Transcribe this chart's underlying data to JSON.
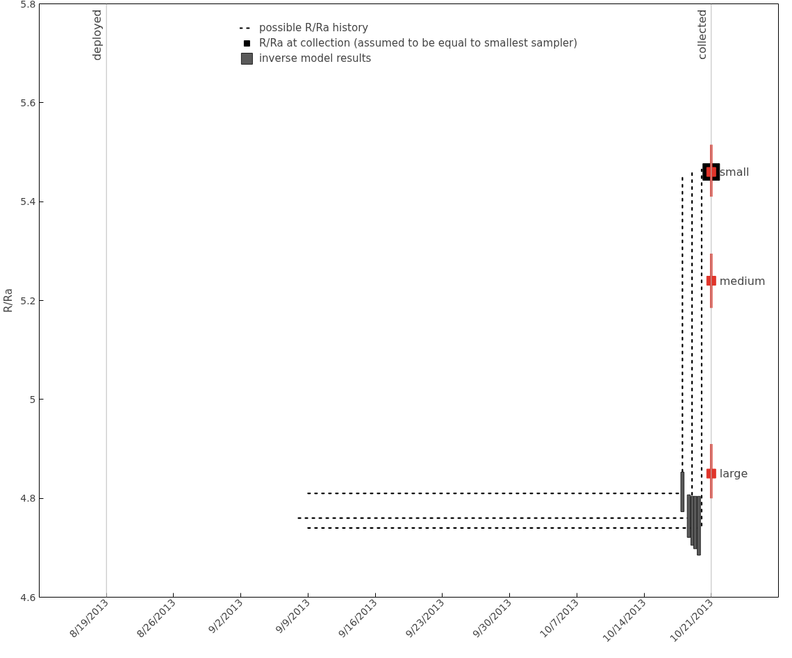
{
  "chart_data": {
    "type": "scatter",
    "ylabel": "R/Ra",
    "xlim": [
      "2013-08-12",
      "2013-10-28"
    ],
    "xticks": [
      {
        "value": "2013-08-19",
        "label": "8/19/2013"
      },
      {
        "value": "2013-08-26",
        "label": "8/26/2013"
      },
      {
        "value": "2013-09-02",
        "label": "9/2/2013"
      },
      {
        "value": "2013-09-09",
        "label": "9/9/2013"
      },
      {
        "value": "2013-09-16",
        "label": "9/16/2013"
      },
      {
        "value": "2013-09-23",
        "label": "9/23/2013"
      },
      {
        "value": "2013-09-30",
        "label": "9/30/2013"
      },
      {
        "value": "2013-10-07",
        "label": "10/7/2013"
      },
      {
        "value": "2013-10-14",
        "label": "10/14/2013"
      },
      {
        "value": "2013-10-21",
        "label": "10/21/2013"
      }
    ],
    "ylim": [
      4.6,
      5.8
    ],
    "yticks": [
      4.6,
      4.8,
      5,
      5.2,
      5.4,
      5.6,
      5.8
    ],
    "grid": false,
    "legend": "top",
    "ref_lines": [
      {
        "axis": "x",
        "value": "2013-08-19",
        "label": "deployed",
        "color": "#bbbbbb"
      },
      {
        "axis": "x",
        "value": "2013-10-21",
        "label": "collected",
        "color": "#bbbbbb"
      }
    ],
    "series": [
      {
        "type": "line",
        "name": "possible R/Ra history",
        "color": "#000000",
        "line_style": "dotted",
        "x": [
          "2013-09-09",
          "2013-10-18",
          "2013-10-18"
        ],
        "values": [
          4.81,
          4.81,
          5.455
        ]
      },
      {
        "type": "line",
        "color": "#000000",
        "line_style": "dotted",
        "x": [
          "2013-09-08",
          "2013-10-19",
          "2013-10-19"
        ],
        "values": [
          4.76,
          4.76,
          5.465
        ]
      },
      {
        "type": "line",
        "color": "#000000",
        "line_style": "dotted",
        "x": [
          "2013-09-09",
          "2013-10-20",
          "2013-10-20"
        ],
        "values": [
          4.74,
          4.74,
          5.465
        ]
      },
      {
        "name": "R/Ra at collection (assumed to be equal to smallest sampler)",
        "color": "#000000",
        "marker": "square",
        "x": [
          "2013-10-21"
        ],
        "values": [
          5.46
        ]
      },
      {
        "type": "bar",
        "name": "inverse model results",
        "color": "#5a5a5a",
        "x": [
          "2013-10-18T00:00",
          "2013-10-18T16:00",
          "2013-10-19T01:00",
          "2013-10-19T08:00",
          "2013-10-19T17:00"
        ],
        "base": [
          4.773,
          4.721,
          4.705,
          4.698,
          4.685
        ],
        "values": [
          0.08,
          0.086,
          0.099,
          0.106,
          0.119
        ]
      },
      {
        "color": "#e0342a",
        "marker": "square",
        "x": [
          "2013-10-21",
          "2013-10-21",
          "2013-10-21"
        ],
        "values": [
          5.46,
          5.24,
          4.85
        ],
        "errors": [
          [
            5.41,
            5.515
          ],
          [
            5.185,
            5.295
          ],
          [
            4.8,
            4.91
          ]
        ]
      }
    ],
    "annotations": [
      {
        "text": "small",
        "x": "2013-10-21",
        "y": 5.46
      },
      {
        "text": "medium",
        "x": "2013-10-21",
        "y": 5.24
      },
      {
        "text": "large",
        "x": "2013-10-21",
        "y": 4.85
      }
    ]
  }
}
